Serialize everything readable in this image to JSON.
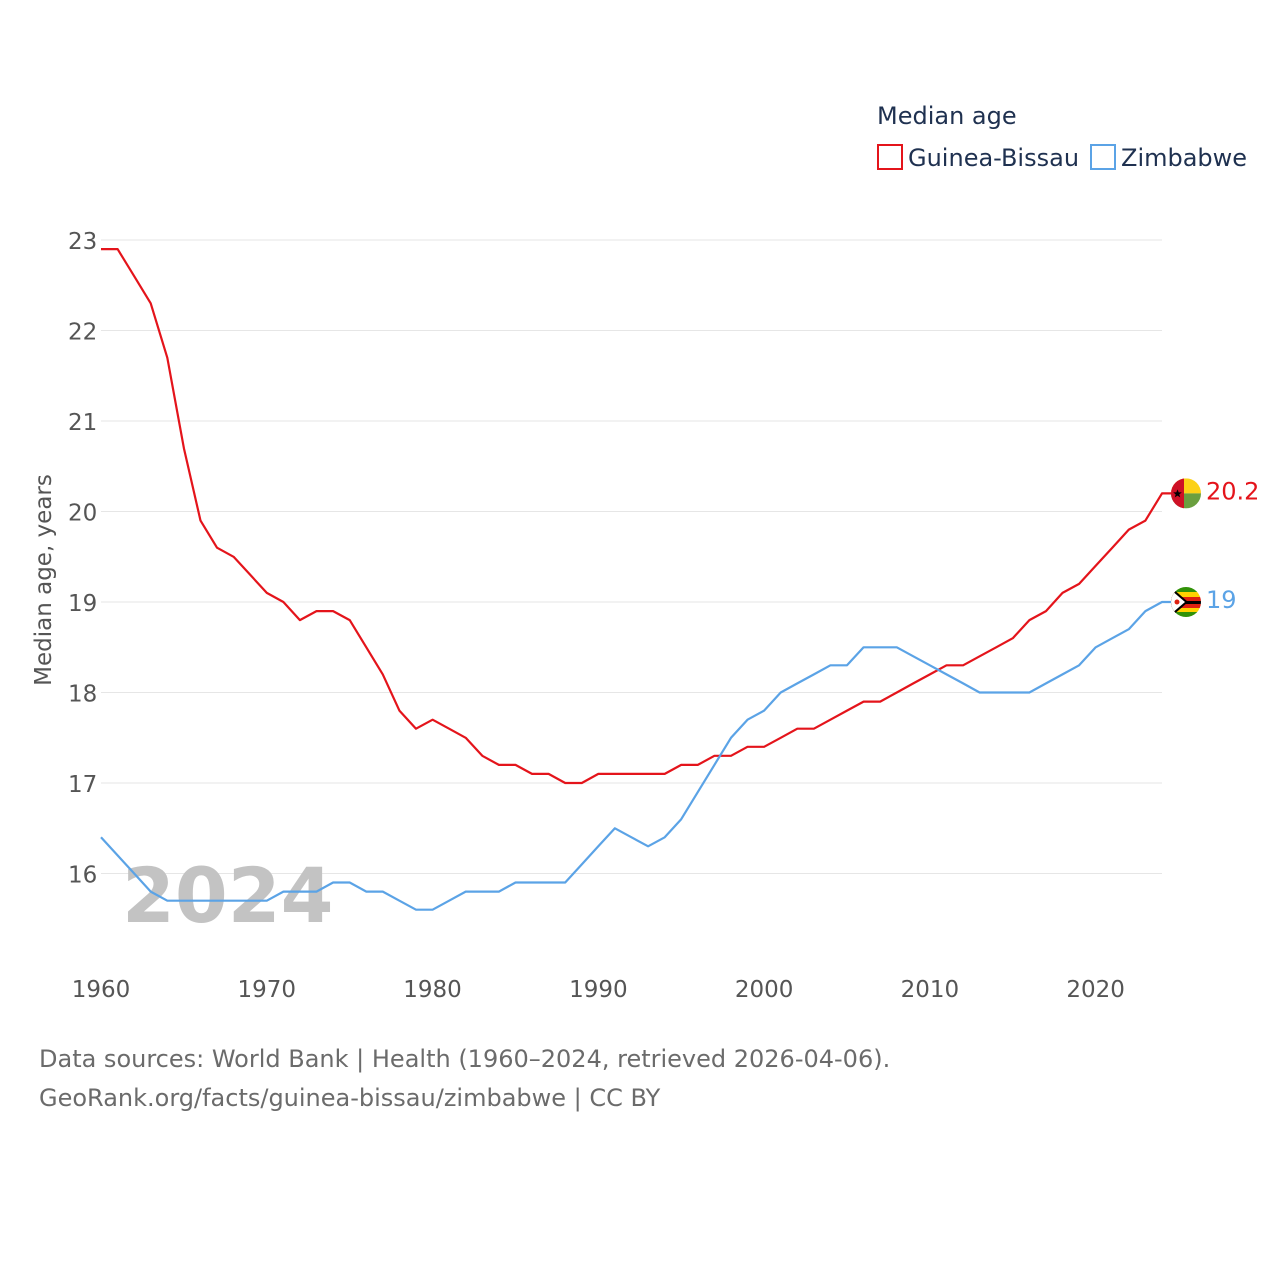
{
  "colors": {
    "guinea_bissau": "#e4141b",
    "zimbabwe": "#5ba3e6",
    "grid": "#e6e6e6",
    "axis_text": "#555555"
  },
  "chart_data": {
    "type": "line",
    "title": "",
    "legend_title": "Median age",
    "legend_position": "top-right",
    "xlabel": "",
    "ylabel": "Median age, years",
    "xlim": [
      1960,
      2024
    ],
    "ylim": [
      15,
      23
    ],
    "x_ticks": [
      1960,
      1970,
      1980,
      1990,
      2000,
      2010,
      2020
    ],
    "y_ticks": [
      16,
      17,
      18,
      19,
      20,
      21,
      22,
      23
    ],
    "grid": true,
    "year_watermark": "2024",
    "x": [
      1960,
      1961,
      1962,
      1963,
      1964,
      1965,
      1966,
      1967,
      1968,
      1969,
      1970,
      1971,
      1972,
      1973,
      1974,
      1975,
      1976,
      1977,
      1978,
      1979,
      1980,
      1981,
      1982,
      1983,
      1984,
      1985,
      1986,
      1987,
      1988,
      1989,
      1990,
      1991,
      1992,
      1993,
      1994,
      1995,
      1996,
      1997,
      1998,
      1999,
      2000,
      2001,
      2002,
      2003,
      2004,
      2005,
      2006,
      2007,
      2008,
      2009,
      2010,
      2011,
      2012,
      2013,
      2014,
      2015,
      2016,
      2017,
      2018,
      2019,
      2020,
      2021,
      2022,
      2023,
      2024
    ],
    "series": [
      {
        "name": "Guinea-Bissau",
        "color": "#e4141b",
        "end_label": "20.2",
        "values": [
          22.9,
          22.9,
          22.6,
          22.3,
          21.7,
          20.7,
          19.9,
          19.6,
          19.5,
          19.3,
          19.1,
          19.0,
          18.8,
          18.9,
          18.9,
          18.8,
          18.5,
          18.2,
          17.8,
          17.6,
          17.7,
          17.6,
          17.5,
          17.3,
          17.2,
          17.2,
          17.1,
          17.1,
          17.0,
          17.0,
          17.1,
          17.1,
          17.1,
          17.1,
          17.1,
          17.2,
          17.2,
          17.3,
          17.3,
          17.4,
          17.4,
          17.5,
          17.6,
          17.6,
          17.7,
          17.8,
          17.9,
          17.9,
          18.0,
          18.1,
          18.2,
          18.3,
          18.3,
          18.4,
          18.5,
          18.6,
          18.8,
          18.9,
          19.1,
          19.2,
          19.4,
          19.6,
          19.8,
          19.9,
          20.2
        ]
      },
      {
        "name": "Zimbabwe",
        "color": "#5ba3e6",
        "end_label": "19",
        "values": [
          16.4,
          16.2,
          16.0,
          15.8,
          15.7,
          15.7,
          15.7,
          15.7,
          15.7,
          15.7,
          15.7,
          15.8,
          15.8,
          15.8,
          15.9,
          15.9,
          15.8,
          15.8,
          15.7,
          15.6,
          15.6,
          15.7,
          15.8,
          15.8,
          15.8,
          15.9,
          15.9,
          15.9,
          15.9,
          16.1,
          16.3,
          16.5,
          16.4,
          16.3,
          16.4,
          16.6,
          16.9,
          17.2,
          17.5,
          17.7,
          17.8,
          18.0,
          18.1,
          18.2,
          18.3,
          18.3,
          18.5,
          18.5,
          18.5,
          18.4,
          18.3,
          18.2,
          18.1,
          18.0,
          18.0,
          18.0,
          18.0,
          18.1,
          18.2,
          18.3,
          18.5,
          18.6,
          18.7,
          18.9,
          19.0
        ]
      }
    ]
  },
  "source": {
    "line1": "Data sources: World Bank | Health (1960–2024, retrieved 2026-04-06).",
    "line2": "GeoRank.org/facts/guinea-bissau/zimbabwe | CC BY"
  }
}
